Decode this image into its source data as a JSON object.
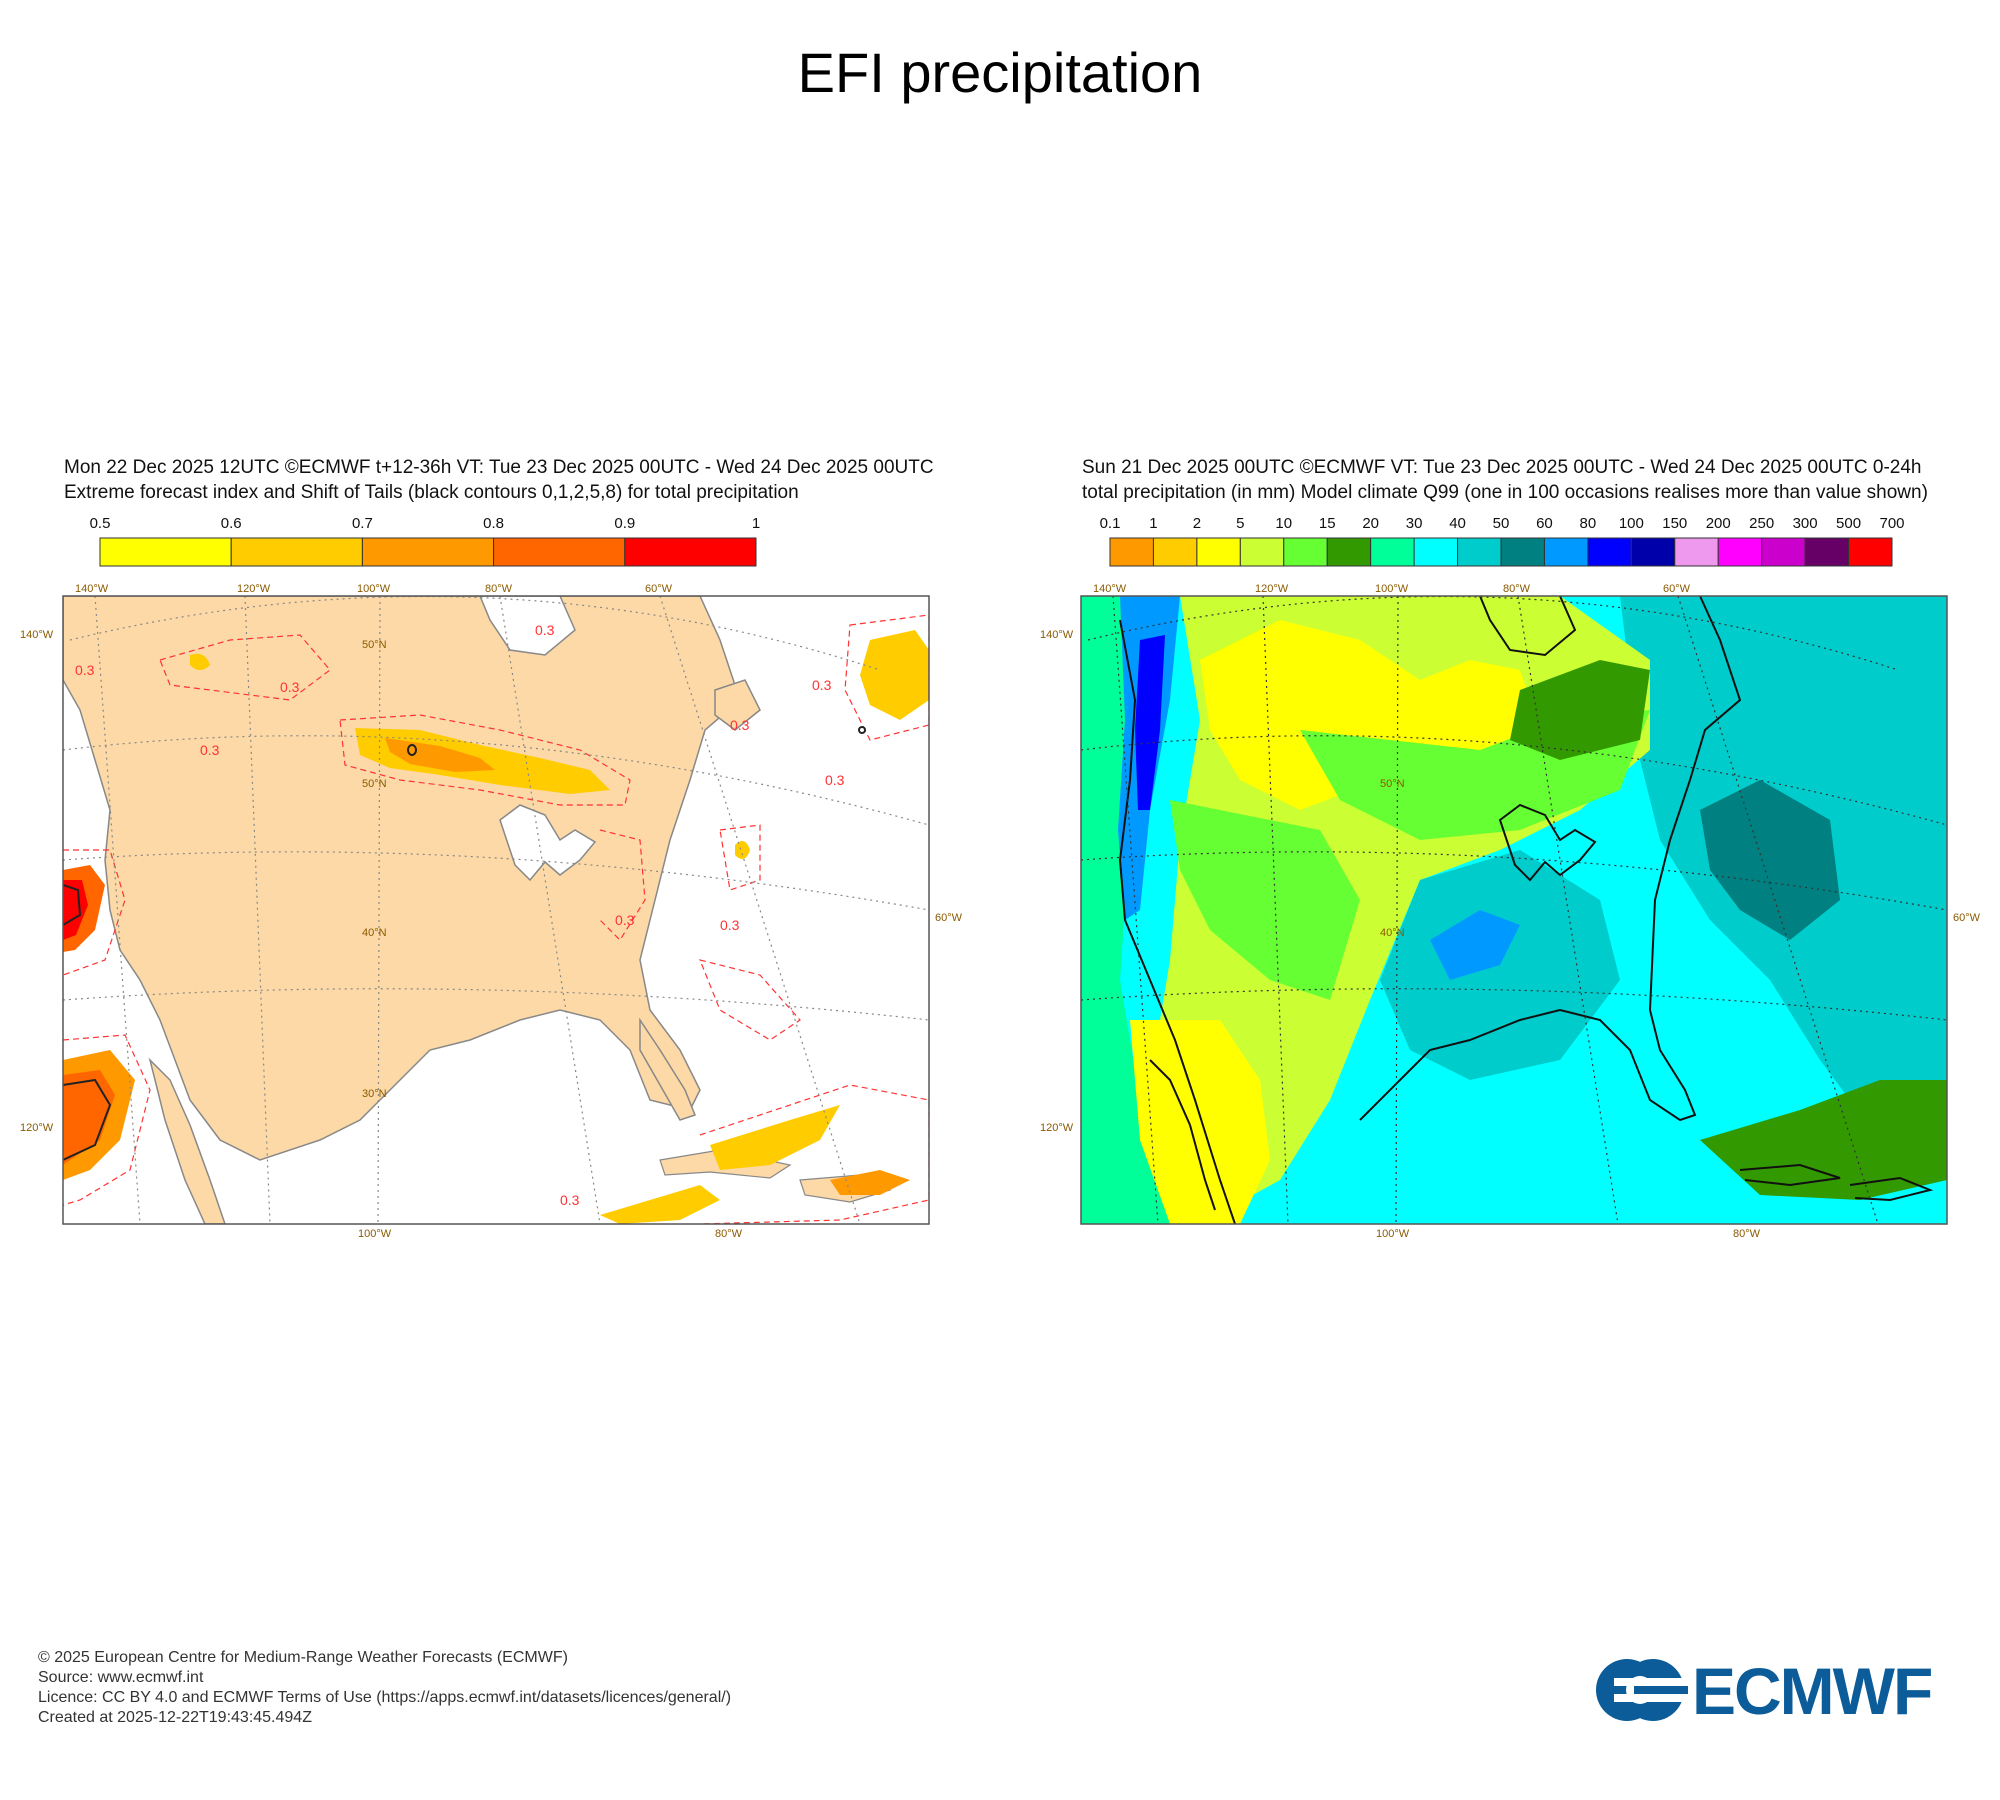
{
  "page": {
    "title": "EFI precipitation"
  },
  "left_panel": {
    "header_line1": "Mon 22 Dec 2025 12UTC ©ECMWF t+12-36h  VT: Tue 23 Dec 2025 00UTC - Wed 24 Dec 2025 00UTC",
    "header_line2": "Extreme forecast index and Shift of Tails (black contours 0,1,2,5,8) for total precipitation",
    "legend": {
      "labels": [
        "0.5",
        "0.6",
        "0.7",
        "0.8",
        "0.9",
        "1"
      ],
      "colors": [
        "#ffff00",
        "#ffcc00",
        "#ff9900",
        "#ff6600",
        "#ff0000"
      ]
    },
    "map": {
      "land_color": "#fcd9a6",
      "sea_color": "#ffffff",
      "grid_labels": {
        "top": [
          "140°W",
          "120°W",
          "100°W",
          "80°W",
          "60°W"
        ],
        "bottom": [
          "100°W",
          "80°W"
        ],
        "left": [
          "140°W",
          "120°W"
        ],
        "right": [
          "60°W"
        ],
        "lat": [
          "50°N",
          "50°N",
          "40°N",
          "30°N"
        ]
      },
      "contour_labels": [
        "0.3",
        "0.3",
        "0.3",
        "0.3",
        "0.3",
        "0.3",
        "0.3",
        "0.3",
        "0.3",
        "0.3"
      ]
    }
  },
  "right_panel": {
    "header_line1": "Sun 21 Dec 2025 00UTC ©ECMWF VT: Tue 23 Dec 2025 00UTC - Wed 24 Dec 2025 00UTC   0-24h",
    "header_line2": "total precipitation (in mm)  Model climate Q99 (one in 100 occasions realises more than value shown)",
    "legend": {
      "labels": [
        "0.1",
        "1",
        "2",
        "5",
        "10",
        "15",
        "20",
        "30",
        "40",
        "50",
        "60",
        "80",
        "100",
        "150",
        "200",
        "250",
        "300",
        "500",
        "700"
      ],
      "colors": [
        "#ff9900",
        "#ffcc00",
        "#ffff00",
        "#ccff33",
        "#66ff33",
        "#339900",
        "#00ff99",
        "#00ffff",
        "#00cccc",
        "#008080",
        "#0099ff",
        "#0000ff",
        "#0000aa",
        "#ee99ee",
        "#ff00ff",
        "#cc00cc",
        "#660066",
        "#ff0000"
      ]
    },
    "map": {
      "grid_labels": {
        "top": [
          "140°W",
          "120°W",
          "100°W",
          "80°W",
          "60°W"
        ],
        "bottom": [
          "100°W",
          "80°W"
        ],
        "left": [
          "140°W",
          "120°W"
        ],
        "right": [
          "60°W"
        ],
        "lat": [
          "50°N",
          "40°N"
        ]
      }
    }
  },
  "footer": {
    "line1": "© 2025 European Centre for Medium-Range Weather Forecasts (ECMWF)",
    "line2": "Source: www.ecmwf.int",
    "line3": "Licence: CC BY 4.0 and ECMWF Terms of Use (https://apps.ecmwf.int/datasets/licences/general/)",
    "line4": "Created at 2025-12-22T19:43:45.494Z"
  },
  "logo": {
    "text": "ECMWF",
    "color": "#0b5c99"
  }
}
